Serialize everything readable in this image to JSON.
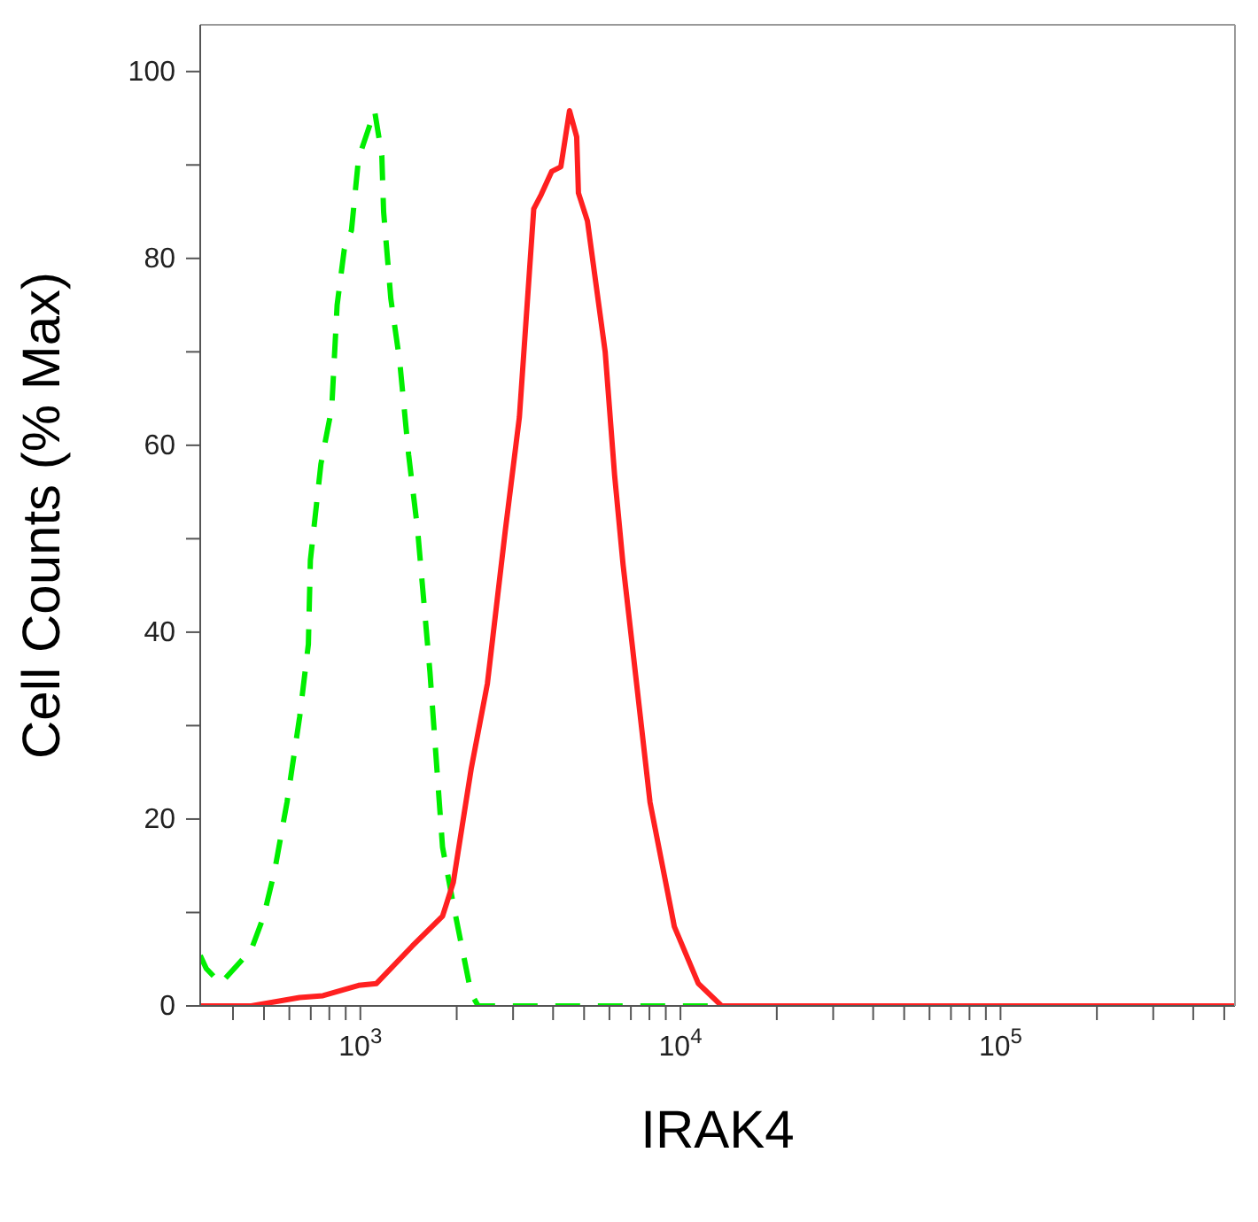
{
  "chart_data": {
    "type": "line",
    "xlabel": "IRAK4",
    "ylabel": "Cell Counts (% Max)",
    "log": "x",
    "xlim": [
      316,
      540000
    ],
    "xticks": [
      {
        "value": 400,
        "label": null
      },
      {
        "value": 500,
        "label": null
      },
      {
        "value": 600,
        "label": null
      },
      {
        "value": 700,
        "label": null
      },
      {
        "value": 800,
        "label": null
      },
      {
        "value": 900,
        "label": null
      },
      {
        "value": 1000,
        "label": "10$^{3}$"
      },
      {
        "value": 2000,
        "label": null
      },
      {
        "value": 3000,
        "label": null
      },
      {
        "value": 4000,
        "label": null
      },
      {
        "value": 5000,
        "label": null
      },
      {
        "value": 6000,
        "label": null
      },
      {
        "value": 7000,
        "label": null
      },
      {
        "value": 8000,
        "label": null
      },
      {
        "value": 9000,
        "label": null
      },
      {
        "value": 10000,
        "label": "10$^{4}$"
      },
      {
        "value": 20000,
        "label": null
      },
      {
        "value": 30000,
        "label": null
      },
      {
        "value": 40000,
        "label": null
      },
      {
        "value": 50000,
        "label": null
      },
      {
        "value": 60000,
        "label": null
      },
      {
        "value": 70000,
        "label": null
      },
      {
        "value": 80000,
        "label": null
      },
      {
        "value": 90000,
        "label": null
      },
      {
        "value": 100000,
        "label": "10$^{5}$"
      },
      {
        "value": 200000,
        "label": null
      },
      {
        "value": 300000,
        "label": null
      },
      {
        "value": 400000,
        "label": null
      },
      {
        "value": 500000,
        "label": null
      }
    ],
    "ylim": [
      0,
      105
    ],
    "yticks": [
      0,
      {
        "value": 10,
        "label": null
      },
      20,
      {
        "value": 30,
        "label": null
      },
      40,
      {
        "value": 50,
        "label": null
      },
      60,
      {
        "value": 70,
        "label": null
      },
      80,
      {
        "value": 90,
        "label": null
      },
      100
    ],
    "grid": false,
    "legend": false,
    "marker": "none",
    "series": [
      {
        "color": "#00ee00",
        "line_style": "dashed",
        "x": [
          316,
          330,
          366,
          456,
          499,
          540,
          590,
          646,
          688,
          698,
          753,
          814,
          846,
          891,
          938,
          987,
          1108,
          1167,
          1182,
          1245,
          1327,
          1415,
          1509,
          1650,
          1806,
          1951,
          2220,
          2335,
          540000
        ],
        "values": [
          5.4,
          4,
          2.4,
          6,
          9.6,
          14.5,
          21.8,
          30.9,
          38.7,
          47.7,
          58,
          64,
          75,
          81,
          83,
          90.7,
          95.8,
          91,
          85,
          75.7,
          69,
          59,
          51,
          35.7,
          17,
          10.9,
          1.3,
          0,
          0
        ]
      },
      {
        "color": "#ff2020",
        "line_style": "solid",
        "x": [
          316,
          456,
          646,
          764,
          987,
          1123,
          1452,
          1806,
          1951,
          2220,
          2494,
          2835,
          3139,
          3481,
          3669,
          3959,
          4230,
          4503,
          4741,
          4800,
          5122,
          5819,
          6227,
          6620,
          7065,
          8034,
          9570,
          11370,
          13450,
          540000
        ],
        "values": [
          0,
          0,
          0.9,
          1.1,
          2.2,
          2.4,
          6.4,
          9.6,
          13.2,
          25.4,
          34.5,
          50.8,
          63,
          85.3,
          86.8,
          89.3,
          89.8,
          95.8,
          93,
          87,
          84,
          70,
          56.8,
          47.2,
          38.7,
          21.8,
          8.5,
          2.4,
          0,
          0
        ]
      }
    ]
  }
}
